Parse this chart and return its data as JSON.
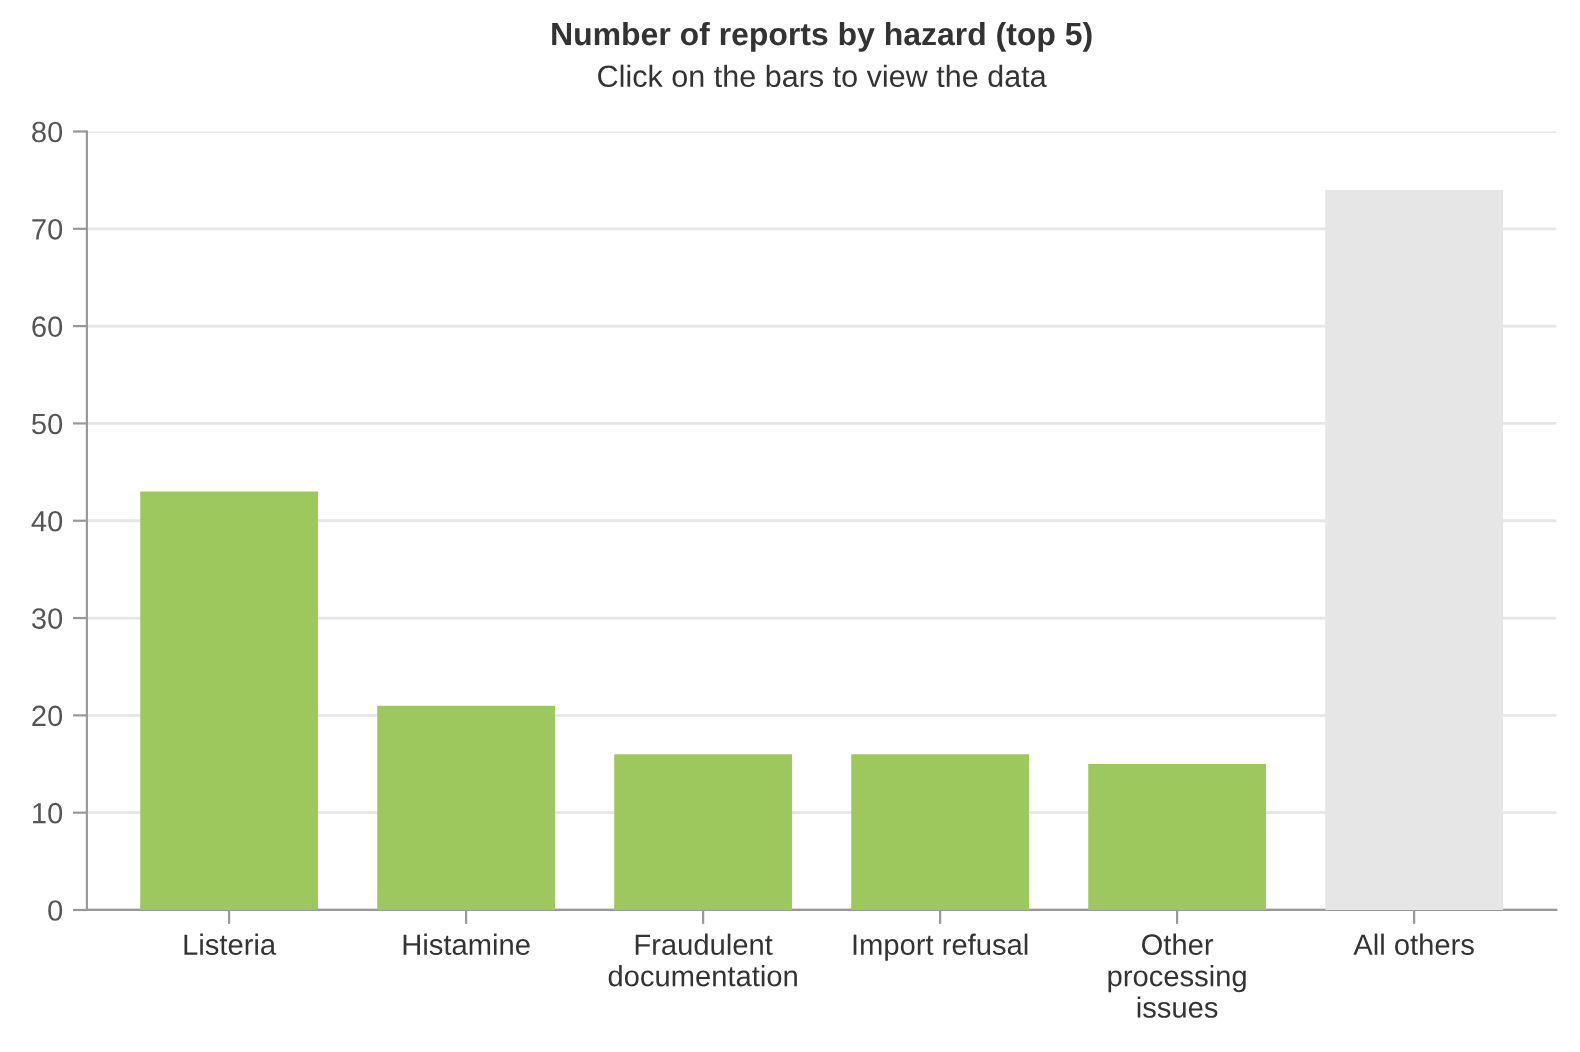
{
  "chart_data": {
    "type": "bar",
    "title": "Number of reports by hazard (top 5)",
    "subtitle": "Click on the bars to view the data",
    "categories": [
      "Listeria",
      "Histamine",
      "Fraudulent\ndocumentation",
      "Import refusal",
      "Other\nprocessing\nissues",
      "All others"
    ],
    "values": [
      43,
      21,
      16,
      16,
      15,
      74
    ],
    "colors": [
      "#9dc85e",
      "#9dc85e",
      "#9dc85e",
      "#9dc85e",
      "#9dc85e",
      "#e6e6e6"
    ],
    "ylim": [
      0,
      80
    ],
    "yticks": [
      0,
      10,
      20,
      30,
      40,
      50,
      60,
      70,
      80
    ],
    "grid": "y"
  }
}
